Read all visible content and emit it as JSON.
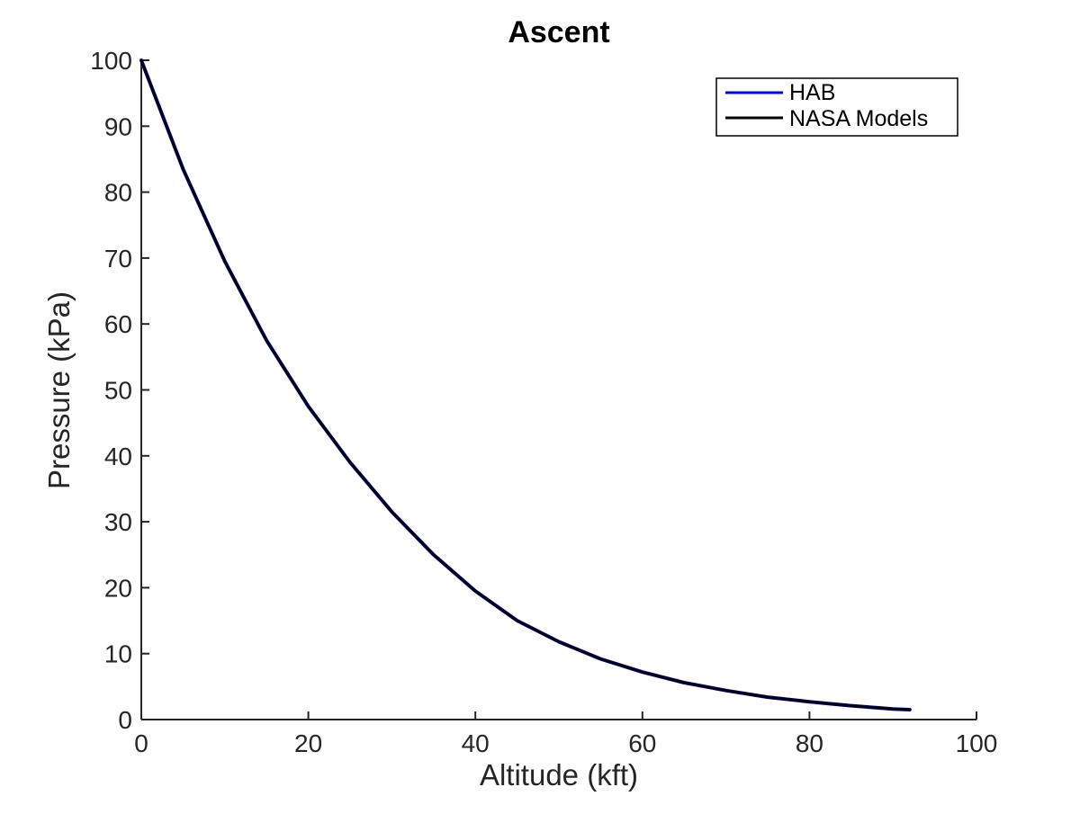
{
  "chart_data": {
    "type": "line",
    "title": "Ascent",
    "xlabel": "Altitude (kft)",
    "ylabel": "Pressure (kPa)",
    "xlim": [
      0,
      100
    ],
    "ylim": [
      0,
      100
    ],
    "xticks": [
      "0",
      "20",
      "40",
      "60",
      "80",
      "100"
    ],
    "yticks": [
      "0",
      "10",
      "20",
      "30",
      "40",
      "50",
      "60",
      "70",
      "80",
      "90",
      "100"
    ],
    "grid": false,
    "legend_position": "top-right",
    "series": [
      {
        "name": "HAB",
        "color": "#0000ff",
        "x": [
          0,
          5,
          10,
          15,
          20,
          25,
          30,
          35,
          40,
          45,
          50,
          55,
          60,
          65,
          70,
          75,
          80,
          85,
          90,
          92
        ],
        "y": [
          100.0,
          83.5,
          69.5,
          57.5,
          47.5,
          39.0,
          31.5,
          25.0,
          19.5,
          15.0,
          11.8,
          9.2,
          7.2,
          5.6,
          4.4,
          3.4,
          2.7,
          2.1,
          1.6,
          1.5
        ]
      },
      {
        "name": "NASA Models",
        "color": "#000000",
        "x": [
          0,
          5,
          10,
          15,
          20,
          25,
          30,
          35,
          40,
          45,
          50,
          55,
          60,
          65,
          70,
          75,
          80,
          85,
          90,
          92
        ],
        "y": [
          100.0,
          83.5,
          69.5,
          57.5,
          47.5,
          39.0,
          31.5,
          25.0,
          19.5,
          15.0,
          11.8,
          9.2,
          7.2,
          5.6,
          4.4,
          3.4,
          2.7,
          2.1,
          1.6,
          1.5
        ]
      }
    ]
  }
}
